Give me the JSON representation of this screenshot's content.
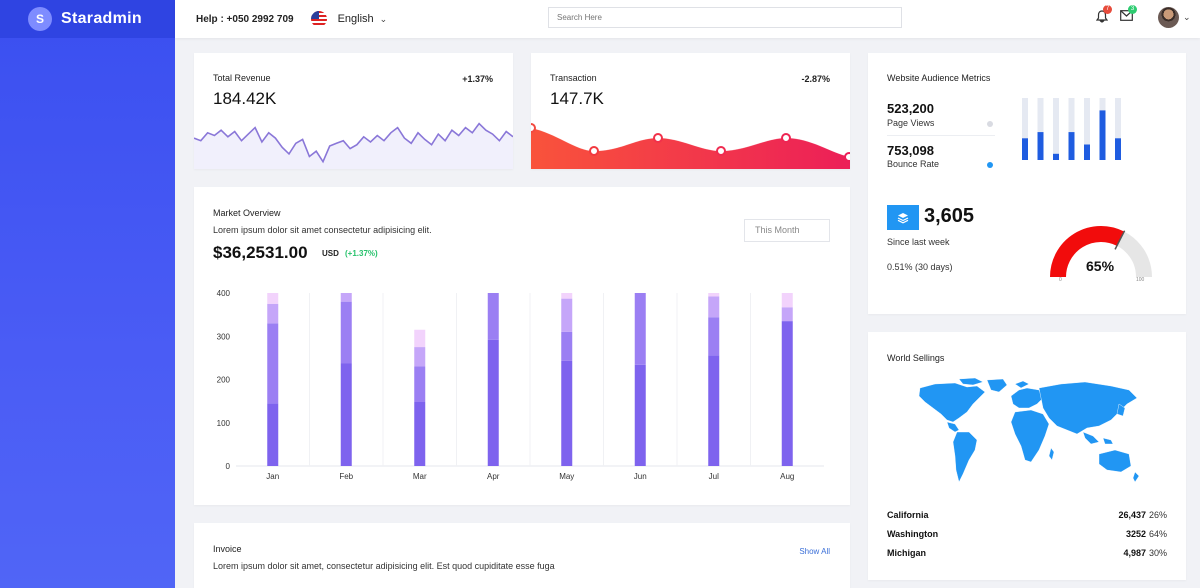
{
  "brand": {
    "initial": "S",
    "name": "Staradmin"
  },
  "topnav": {
    "help": "Help : +050 2992 709",
    "language": "English",
    "search_placeholder": "Search Here",
    "notifications_count": "7",
    "messages_count": "3",
    "icons": [
      "bell-icon",
      "mail-icon",
      "flag-us-icon",
      "chevron-down-icon"
    ],
    "badge_colors": {
      "notifications": "#e74c3c",
      "messages": "#2ecc71"
    }
  },
  "revenue": {
    "title": "Total Revenue",
    "value": "184.42K",
    "delta": "+1.37%",
    "sparkline": [
      62,
      60,
      66,
      64,
      68,
      63,
      67,
      60,
      65,
      70,
      59,
      66,
      62,
      55,
      50,
      58,
      61,
      48,
      52,
      44,
      56,
      58,
      60,
      54,
      57,
      63,
      59,
      64,
      60,
      66,
      70,
      62,
      58,
      66,
      61,
      57,
      65,
      60,
      68,
      64,
      70,
      66,
      73,
      68,
      65,
      60,
      67,
      63
    ]
  },
  "transaction": {
    "title": "Transaction",
    "value": "147.7K",
    "delta": "-2.87%"
  },
  "audience": {
    "title": "Website Audience Metrics",
    "page_views_value": "523,200",
    "page_views_label": "Page Views",
    "bounce_value": "753,098",
    "bounce_label": "Bounce Rate",
    "bars": [
      0.35,
      0.45,
      0.1,
      0.45,
      0.25,
      0.8,
      0.35
    ],
    "since_value": "3,605",
    "since_label": "Since last week",
    "pct_text": "0.51% (30 days)",
    "gauge_value": "65%",
    "gauge_min": "0",
    "gauge_max": "100",
    "gauge_fraction": 0.65,
    "colors": {
      "accent": "#1f5ce0",
      "gauge": "#f20c0c",
      "badge": "#2196f3"
    }
  },
  "market": {
    "title": "Market Overview",
    "subtitle": "Lorem ipsum dolor sit amet consectetur adipisicing elit.",
    "value": "$36,2531.00",
    "currency": "USD",
    "change": "(+1.37%)",
    "filter": "This Month"
  },
  "chart_data": {
    "type": "bar",
    "stacked": true,
    "categories": [
      "Jan",
      "Feb",
      "Mar",
      "Apr",
      "May",
      "Jun",
      "Jul",
      "Aug"
    ],
    "ylim": [
      0,
      400
    ],
    "yticks": [
      "0",
      "100",
      "200",
      "300",
      "400"
    ],
    "series": [
      {
        "values": [
          145,
          237,
          148,
          292,
          243,
          234,
          256,
          335
        ],
        "color": "#7e63ee"
      },
      {
        "values": [
          185,
          143,
          82,
          108,
          67,
          166,
          88,
          0
        ],
        "color": "#9b7ff3"
      },
      {
        "values": [
          45,
          20,
          45,
          0,
          77,
          0,
          48,
          32
        ],
        "color": "#c5a6f9"
      },
      {
        "values": [
          25,
          0,
          40,
          0,
          13,
          0,
          8,
          33
        ],
        "color": "#f2d3fc"
      }
    ]
  },
  "world": {
    "title": "World Sellings",
    "rows": [
      {
        "name": "California",
        "value": "26,437",
        "pct": "26%"
      },
      {
        "name": "Washington",
        "value": "3252",
        "pct": "64%"
      },
      {
        "name": "Michigan",
        "value": "4,987",
        "pct": "30%"
      }
    ]
  },
  "invoice": {
    "title": "Invoice",
    "subtitle": "Lorem ipsum dolor sit amet, consectetur adipisicing elit. Est quod cupiditate esse fuga",
    "show_all": "Show All"
  }
}
